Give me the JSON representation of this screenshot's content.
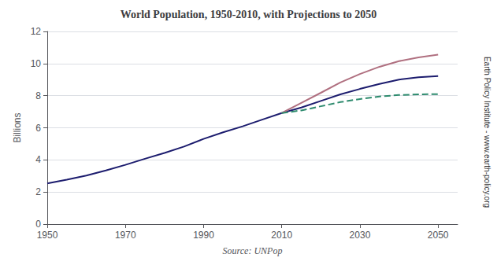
{
  "chart_data": {
    "type": "line",
    "title": "World Population, 1950-2010, with Projections to 2050",
    "ylabel": "Billions",
    "xlabel": "Source: UNPop",
    "annotations": [
      "Earth Policy Institute - www.earth-policy.org"
    ],
    "xlim": [
      1950,
      2055
    ],
    "ylim": [
      0,
      12
    ],
    "xticks": [
      1950,
      1970,
      1990,
      2010,
      2030,
      2050
    ],
    "yticks": [
      0,
      2,
      4,
      6,
      8,
      10,
      12
    ],
    "grid": true,
    "series": [
      {
        "color": "#1c1c6e",
        "line_style": "solid",
        "x": [
          1950,
          1955,
          1960,
          1965,
          1970,
          1975,
          1980,
          1985,
          1990,
          1995,
          2000,
          2005,
          2010
        ],
        "values": [
          2.53,
          2.77,
          3.02,
          3.34,
          3.69,
          4.07,
          4.43,
          4.83,
          5.31,
          5.72,
          6.09,
          6.51,
          6.92
        ]
      },
      {
        "color": "#1c1c6e",
        "line_style": "solid",
        "x": [
          2010,
          2015,
          2020,
          2025,
          2030,
          2035,
          2040,
          2045,
          2050
        ],
        "values": [
          6.92,
          7.26,
          7.67,
          8.08,
          8.42,
          8.73,
          9.0,
          9.15,
          9.22
        ]
      },
      {
        "color": "#b07080",
        "line_style": "solid",
        "x": [
          2010,
          2015,
          2020,
          2025,
          2030,
          2035,
          2040,
          2045,
          2050
        ],
        "values": [
          6.92,
          7.55,
          8.18,
          8.82,
          9.35,
          9.8,
          10.15,
          10.38,
          10.55
        ]
      },
      {
        "color": "#2e8b6e",
        "line_style": "dashed",
        "x": [
          2010,
          2015,
          2020,
          2025,
          2030,
          2035,
          2040,
          2045,
          2050
        ],
        "values": [
          6.92,
          7.08,
          7.34,
          7.6,
          7.79,
          7.95,
          8.04,
          8.08,
          8.1
        ]
      }
    ]
  }
}
